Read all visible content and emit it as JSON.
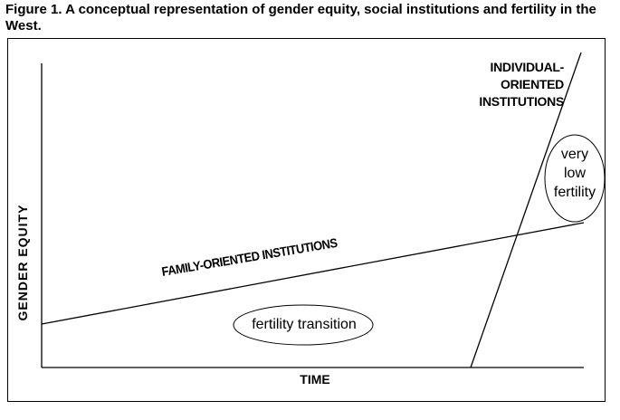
{
  "figure": {
    "caption": "Figure 1. A conceptual representation of gender equity, social institutions and fertility in the West."
  },
  "axes": {
    "y_label": "GENDER EQUITY",
    "x_label": "TIME"
  },
  "lines": {
    "family_label": "FAMILY-ORIENTED INSTITUTIONS",
    "individual_label": [
      "INDIVIDUAL-",
      "ORIENTED",
      "INSTITUTIONS"
    ]
  },
  "bubbles": {
    "fertility_transition": "fertility transition",
    "very_low_fertility": [
      "very",
      "low",
      "fertility"
    ]
  }
}
